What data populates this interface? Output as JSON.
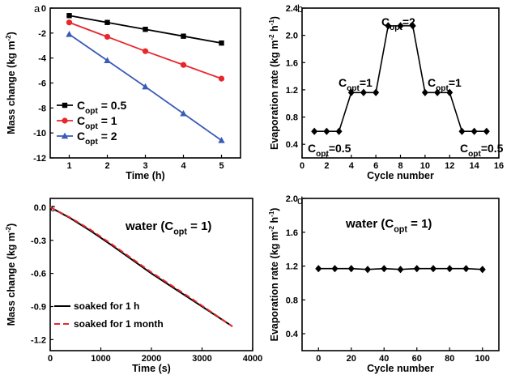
{
  "chart_data": [
    {
      "panel": "a",
      "type": "line",
      "xlabel": "Time (h)",
      "ylabel": "Mass change (kg m⁻²)",
      "xlim": [
        0.5,
        5.5
      ],
      "ylim": [
        -12,
        0
      ],
      "xticks": [
        1,
        2,
        3,
        4,
        5
      ],
      "yticks": [
        -12,
        -10,
        -8,
        -6,
        -4,
        -2,
        0
      ],
      "x": [
        1,
        2,
        3,
        4,
        5
      ],
      "series": [
        {
          "name": "C",
          "sub": "opt",
          "suffix": " = 0.5",
          "color": "#000000",
          "marker": "square",
          "values": [
            -0.6,
            -1.15,
            -1.7,
            -2.25,
            -2.8
          ]
        },
        {
          "name": "C",
          "sub": "opt",
          "suffix": " = 1",
          "color": "#e8262b",
          "marker": "circle",
          "values": [
            -1.15,
            -2.3,
            -3.45,
            -4.55,
            -5.65
          ]
        },
        {
          "name": "C",
          "sub": "opt",
          "suffix": " = 2",
          "color": "#3a5bb8",
          "marker": "triangle",
          "values": [
            -2.1,
            -4.2,
            -6.3,
            -8.45,
            -10.6
          ]
        }
      ],
      "legend_position": "bottom-left"
    },
    {
      "panel": "b",
      "type": "line",
      "xlabel": "Cycle number",
      "ylabel": "Evaporation rate (kg m⁻² h⁻¹)",
      "xlim": [
        0,
        16
      ],
      "ylim": [
        0.2,
        2.4
      ],
      "xticks": [
        0,
        2,
        4,
        6,
        8,
        10,
        12,
        14,
        16
      ],
      "yticks": [
        0.4,
        0.8,
        1.2,
        1.6,
        2.0,
        2.4
      ],
      "x": [
        1,
        2,
        3,
        4,
        5,
        6,
        7,
        8,
        9,
        10,
        11,
        12,
        13,
        14,
        15
      ],
      "values": [
        0.59,
        0.59,
        0.59,
        1.16,
        1.16,
        1.16,
        2.14,
        2.14,
        2.14,
        1.16,
        1.16,
        1.16,
        0.59,
        0.59,
        0.59
      ],
      "annotations": [
        {
          "label": "C",
          "sub": "opt",
          "suffix": "=0.5"
        },
        {
          "label": "C",
          "sub": "opt",
          "suffix": "=1"
        },
        {
          "label": "C",
          "sub": "opt",
          "suffix": "=2"
        },
        {
          "label": "C",
          "sub": "opt",
          "suffix": "=1"
        },
        {
          "label": "C",
          "sub": "opt",
          "suffix": "=0.5"
        }
      ]
    },
    {
      "panel": "c",
      "type": "line",
      "xlabel": "Time (s)",
      "ylabel": "Mass change (kg m⁻²)",
      "xlim": [
        0,
        4000
      ],
      "ylim": [
        -1.3,
        0.08
      ],
      "xticks": [
        0,
        1000,
        2000,
        3000,
        4000
      ],
      "yticks": [
        -1.2,
        -0.9,
        -0.6,
        -0.3,
        0.0
      ],
      "title_prefix": "water (C",
      "title_sub": "opt",
      "title_suffix": " = 1)",
      "x": [
        0,
        400,
        800,
        1200,
        1600,
        2000,
        2400,
        2800,
        3200,
        3600
      ],
      "series": [
        {
          "name": "soaked for 1 h",
          "color": "#000000",
          "dash": "none",
          "values": [
            0,
            -0.1,
            -0.215,
            -0.34,
            -0.47,
            -0.6,
            -0.72,
            -0.84,
            -0.96,
            -1.08
          ]
        },
        {
          "name": "soaked for 1 month",
          "color": "#e8262b",
          "dash": "7,4",
          "values": [
            0,
            -0.095,
            -0.205,
            -0.33,
            -0.46,
            -0.59,
            -0.71,
            -0.83,
            -0.955,
            -1.08
          ]
        }
      ],
      "legend_position": "bottom-left"
    },
    {
      "panel": "d",
      "type": "line",
      "xlabel": "Cycle number",
      "ylabel": "Evaporation rate (kg m⁻² h⁻¹)",
      "xlim": [
        -10,
        110
      ],
      "ylim": [
        0.2,
        2.0
      ],
      "xticks": [
        0,
        20,
        40,
        60,
        80,
        100
      ],
      "yticks": [
        0.4,
        0.8,
        1.2,
        1.6,
        2.0
      ],
      "title_prefix": "water (C",
      "title_sub": "opt",
      "title_suffix": " = 1)",
      "x": [
        0,
        10,
        20,
        30,
        40,
        50,
        60,
        70,
        80,
        90,
        100
      ],
      "values": [
        1.17,
        1.17,
        1.17,
        1.16,
        1.17,
        1.16,
        1.17,
        1.17,
        1.17,
        1.17,
        1.16
      ]
    }
  ]
}
